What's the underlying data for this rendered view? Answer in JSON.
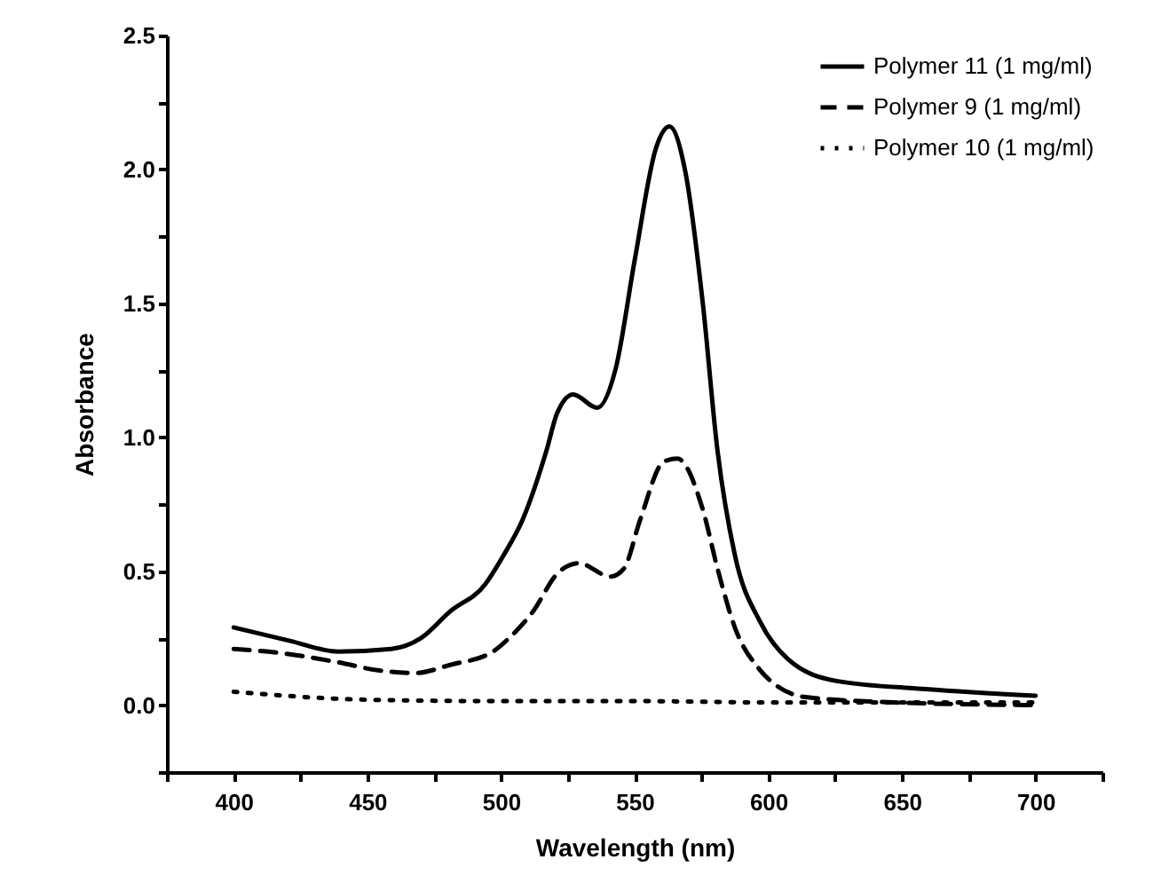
{
  "chart_data": {
    "type": "line",
    "xlabel": "Wavelength (nm)",
    "ylabel": "Absorbance",
    "xlim": [
      375,
      725
    ],
    "xticks": [
      {
        "value": 375,
        "label": null
      },
      400,
      {
        "value": 425,
        "label": null
      },
      450,
      {
        "value": 475,
        "label": null
      },
      500,
      {
        "value": 525,
        "label": null
      },
      550,
      {
        "value": 575,
        "label": null
      },
      600,
      {
        "value": 625,
        "label": null
      },
      650,
      {
        "value": 675,
        "label": null
      },
      700,
      {
        "value": 725,
        "label": null
      }
    ],
    "ylim": [
      -0.25,
      2.5
    ],
    "yticks": [
      {
        "value": -0.25,
        "label": null
      },
      {
        "value": 0,
        "label": "0.0"
      },
      {
        "value": 0.25,
        "label": null
      },
      {
        "value": 0.5,
        "label": "0.5"
      },
      {
        "value": 0.75,
        "label": null
      },
      {
        "value": 1,
        "label": "1.0"
      },
      {
        "value": 1.25,
        "label": null
      },
      {
        "value": 1.5,
        "label": "1.5"
      },
      {
        "value": 1.75,
        "label": null
      },
      {
        "value": 2,
        "label": "2.0"
      },
      {
        "value": 2.25,
        "label": null
      },
      {
        "value": 2.5,
        "label": "2.5"
      }
    ],
    "legend": "top right",
    "grid": false,
    "series": [
      {
        "name": "Polymer 11 (1 mg/ml)",
        "color": "#000000",
        "line_style": "solid",
        "x": [
          400,
          421,
          439,
          459,
          470,
          481,
          494,
          501,
          508,
          517,
          521,
          527,
          536,
          543,
          550,
          558,
          563,
          569,
          575.5,
          581,
          587.5,
          597,
          607.5,
          625.5,
          659,
          700
        ],
        "values": [
          0.29,
          0.24,
          0.2,
          0.21,
          0.25,
          0.35,
          0.45,
          0.56,
          0.69,
          0.95,
          1.09,
          1.16,
          1.11,
          1.26,
          1.66,
          2.08,
          2.16,
          1.99,
          1.5,
          0.95,
          0.56,
          0.31,
          0.17,
          0.09,
          0.06,
          0.035
        ]
      },
      {
        "name": "Polymer 9 (1 mg/ml)",
        "color": "#000000",
        "line_style": "dashed",
        "x": [
          400,
          421,
          439,
          454,
          468,
          481,
          497,
          503,
          512,
          521,
          529,
          541,
          546,
          552,
          561,
          566,
          575.5,
          581,
          587.5,
          597,
          603.5,
          614,
          647.5,
          700
        ],
        "values": [
          0.21,
          0.19,
          0.16,
          0.13,
          0.12,
          0.15,
          0.2,
          0.25,
          0.35,
          0.49,
          0.53,
          0.48,
          0.51,
          0.69,
          0.91,
          0.92,
          0.73,
          0.51,
          0.29,
          0.13,
          0.07,
          0.03,
          0.01,
          0.0
        ]
      },
      {
        "name": "Polymer 10 (1 mg/ml)",
        "color": "#000000",
        "line_style": "dotted",
        "x": [
          400,
          450,
          500,
          550,
          600,
          650,
          700
        ],
        "values": [
          0.05,
          0.02,
          0.015,
          0.015,
          0.01,
          0.01,
          0.01
        ]
      }
    ]
  }
}
